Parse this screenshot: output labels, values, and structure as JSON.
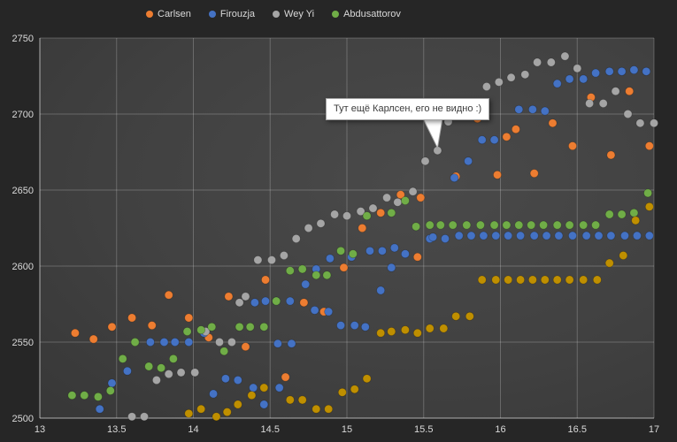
{
  "window": {
    "background": "#262626",
    "plot_gradient_center": "#4a4a4a",
    "plot_gradient_edge": "#2d2d2d"
  },
  "legend": {
    "items": [
      {
        "label": "Carlsen",
        "color": "#ED7D31"
      },
      {
        "label": "Firouzja",
        "color": "#4472C4"
      },
      {
        "label": "Wey Yi",
        "color": "#A5A5A5"
      },
      {
        "label": "Abdusattorov",
        "color": "#70AD47"
      }
    ]
  },
  "tooltip": {
    "text": "Тут ещё Карлсен, его не видно :)"
  },
  "axes": {
    "tick_color": "#d9d9d9",
    "grid_color": "rgba(255,255,255,0.22)",
    "axis_color": "rgba(255,255,255,0.5)"
  },
  "chart_data": {
    "type": "scatter",
    "title": "",
    "xlabel": "",
    "ylabel": "",
    "xlim": [
      13,
      17
    ],
    "ylim": [
      2500,
      2750
    ],
    "x_ticks": [
      13,
      13.5,
      14,
      14.5,
      15,
      15.5,
      16,
      16.5,
      17
    ],
    "y_ticks": [
      2500,
      2550,
      2600,
      2650,
      2700,
      2750
    ],
    "grid": true,
    "legend_position": "top-center",
    "annotation": {
      "text": "Тут ещё Карлсен, его не видно :)",
      "points_to": {
        "x": 15.59,
        "y": 2676
      }
    },
    "series": [
      {
        "name": "Carlsen",
        "color": "#ED7D31",
        "in_legend": true,
        "points": [
          [
            13.23,
            2556
          ],
          [
            13.35,
            2552
          ],
          [
            13.47,
            2560
          ],
          [
            13.6,
            2566
          ],
          [
            13.73,
            2561
          ],
          [
            13.84,
            2581
          ],
          [
            13.97,
            2566
          ],
          [
            14.1,
            2553
          ],
          [
            14.23,
            2580
          ],
          [
            14.34,
            2547
          ],
          [
            14.47,
            2591
          ],
          [
            14.6,
            2527
          ],
          [
            14.72,
            2576
          ],
          [
            14.85,
            2570
          ],
          [
            14.98,
            2599
          ],
          [
            15.1,
            2625
          ],
          [
            15.22,
            2635
          ],
          [
            15.35,
            2647
          ],
          [
            15.46,
            2606
          ],
          [
            15.48,
            2645
          ],
          [
            15.71,
            2659
          ],
          [
            15.85,
            2697
          ],
          [
            15.98,
            2660
          ],
          [
            16.04,
            2685
          ],
          [
            16.1,
            2690
          ],
          [
            16.22,
            2661
          ],
          [
            16.34,
            2694
          ],
          [
            16.47,
            2679
          ],
          [
            16.59,
            2711
          ],
          [
            16.72,
            2673
          ],
          [
            16.84,
            2715
          ],
          [
            16.97,
            2679
          ]
        ]
      },
      {
        "name": "Firouzja",
        "color": "#4472C4",
        "in_legend": true,
        "points": [
          [
            13.39,
            2506
          ],
          [
            13.47,
            2523
          ],
          [
            13.57,
            2531
          ],
          [
            13.72,
            2550
          ],
          [
            13.81,
            2550
          ],
          [
            13.88,
            2550
          ],
          [
            13.97,
            2550
          ],
          [
            14.07,
            2556
          ],
          [
            14.13,
            2516
          ],
          [
            14.21,
            2526
          ],
          [
            14.29,
            2525
          ],
          [
            14.39,
            2520
          ],
          [
            14.4,
            2576
          ],
          [
            14.46,
            2509
          ],
          [
            14.47,
            2577
          ],
          [
            14.54,
            2577
          ],
          [
            14.55,
            2549
          ],
          [
            14.56,
            2520
          ],
          [
            14.63,
            2577
          ],
          [
            14.64,
            2549
          ],
          [
            14.73,
            2588
          ],
          [
            14.79,
            2571
          ],
          [
            14.8,
            2598
          ],
          [
            14.88,
            2570
          ],
          [
            14.89,
            2605
          ],
          [
            14.96,
            2561
          ],
          [
            15.03,
            2606
          ],
          [
            15.05,
            2561
          ],
          [
            15.12,
            2560
          ],
          [
            15.15,
            2610
          ],
          [
            15.22,
            2584
          ],
          [
            15.23,
            2610
          ],
          [
            15.29,
            2599
          ],
          [
            15.31,
            2612
          ],
          [
            15.38,
            2608
          ],
          [
            15.54,
            2618
          ],
          [
            15.56,
            2619
          ],
          [
            15.64,
            2618
          ],
          [
            15.7,
            2658
          ],
          [
            15.73,
            2620
          ],
          [
            15.79,
            2669
          ],
          [
            15.81,
            2620
          ],
          [
            15.88,
            2683
          ],
          [
            15.89,
            2620
          ],
          [
            15.96,
            2683
          ],
          [
            15.97,
            2620
          ],
          [
            16.05,
            2620
          ],
          [
            16.12,
            2703
          ],
          [
            16.13,
            2620
          ],
          [
            16.21,
            2703
          ],
          [
            16.22,
            2620
          ],
          [
            16.29,
            2702
          ],
          [
            16.3,
            2620
          ],
          [
            16.37,
            2720
          ],
          [
            16.38,
            2620
          ],
          [
            16.45,
            2723
          ],
          [
            16.47,
            2620
          ],
          [
            16.54,
            2723
          ],
          [
            16.56,
            2620
          ],
          [
            16.62,
            2727
          ],
          [
            16.64,
            2620
          ],
          [
            16.71,
            2728
          ],
          [
            16.72,
            2620
          ],
          [
            16.79,
            2728
          ],
          [
            16.81,
            2620
          ],
          [
            16.87,
            2729
          ],
          [
            16.89,
            2620
          ],
          [
            16.95,
            2728
          ],
          [
            16.97,
            2620
          ]
        ]
      },
      {
        "name": "Wey Yi",
        "color": "#A5A5A5",
        "in_legend": true,
        "points": [
          [
            13.6,
            2501
          ],
          [
            13.68,
            2501
          ],
          [
            13.76,
            2525
          ],
          [
            13.84,
            2529
          ],
          [
            13.92,
            2530
          ],
          [
            14.01,
            2530
          ],
          [
            14.08,
            2557
          ],
          [
            14.17,
            2550
          ],
          [
            14.25,
            2550
          ],
          [
            14.3,
            2576
          ],
          [
            14.34,
            2580
          ],
          [
            14.42,
            2604
          ],
          [
            14.51,
            2604
          ],
          [
            14.59,
            2607
          ],
          [
            14.67,
            2618
          ],
          [
            14.75,
            2625
          ],
          [
            14.83,
            2628
          ],
          [
            14.92,
            2634
          ],
          [
            15.0,
            2633
          ],
          [
            15.09,
            2636
          ],
          [
            15.17,
            2638
          ],
          [
            15.26,
            2645
          ],
          [
            15.33,
            2642
          ],
          [
            15.43,
            2649
          ],
          [
            15.51,
            2669
          ],
          [
            15.59,
            2676
          ],
          [
            15.66,
            2695
          ],
          [
            15.75,
            2707
          ],
          [
            15.83,
            2704
          ],
          [
            15.91,
            2718
          ],
          [
            15.99,
            2721
          ],
          [
            16.07,
            2724
          ],
          [
            16.16,
            2726
          ],
          [
            16.24,
            2734
          ],
          [
            16.33,
            2734
          ],
          [
            16.42,
            2738
          ],
          [
            16.5,
            2730
          ],
          [
            16.58,
            2707
          ],
          [
            16.67,
            2707
          ],
          [
            16.75,
            2715
          ],
          [
            16.83,
            2700
          ],
          [
            16.91,
            2694
          ],
          [
            17.0,
            2694
          ]
        ]
      },
      {
        "name": "Abdusattorov",
        "color": "#70AD47",
        "in_legend": true,
        "points": [
          [
            13.21,
            2515
          ],
          [
            13.29,
            2515
          ],
          [
            13.38,
            2514
          ],
          [
            13.46,
            2518
          ],
          [
            13.54,
            2539
          ],
          [
            13.62,
            2550
          ],
          [
            13.71,
            2534
          ],
          [
            13.79,
            2533
          ],
          [
            13.87,
            2539
          ],
          [
            13.96,
            2557
          ],
          [
            14.05,
            2558
          ],
          [
            14.12,
            2560
          ],
          [
            14.2,
            2544
          ],
          [
            14.3,
            2560
          ],
          [
            14.37,
            2560
          ],
          [
            14.46,
            2560
          ],
          [
            14.54,
            2577
          ],
          [
            14.63,
            2597
          ],
          [
            14.71,
            2598
          ],
          [
            14.8,
            2594
          ],
          [
            14.87,
            2594
          ],
          [
            14.96,
            2610
          ],
          [
            15.04,
            2608
          ],
          [
            15.13,
            2633
          ],
          [
            15.29,
            2635
          ],
          [
            15.38,
            2643
          ],
          [
            15.45,
            2626
          ],
          [
            15.54,
            2627
          ],
          [
            15.61,
            2627
          ],
          [
            15.69,
            2627
          ],
          [
            15.78,
            2627
          ],
          [
            15.87,
            2627
          ],
          [
            15.96,
            2627
          ],
          [
            16.04,
            2627
          ],
          [
            16.12,
            2627
          ],
          [
            16.2,
            2627
          ],
          [
            16.28,
            2627
          ],
          [
            16.37,
            2627
          ],
          [
            16.45,
            2627
          ],
          [
            16.54,
            2627
          ],
          [
            16.62,
            2627
          ],
          [
            16.71,
            2634
          ],
          [
            16.79,
            2634
          ],
          [
            16.87,
            2635
          ],
          [
            16.96,
            2648
          ]
        ]
      },
      {
        "name": "unlabeled-gold",
        "color": "#BF8F00",
        "in_legend": false,
        "points": [
          [
            13.97,
            2503
          ],
          [
            14.05,
            2506
          ],
          [
            14.15,
            2501
          ],
          [
            14.22,
            2504
          ],
          [
            14.29,
            2509
          ],
          [
            14.38,
            2515
          ],
          [
            14.46,
            2520
          ],
          [
            14.63,
            2512
          ],
          [
            14.71,
            2512
          ],
          [
            14.8,
            2506
          ],
          [
            14.88,
            2506
          ],
          [
            14.97,
            2517
          ],
          [
            15.05,
            2519
          ],
          [
            15.13,
            2526
          ],
          [
            15.22,
            2556
          ],
          [
            15.29,
            2557
          ],
          [
            15.38,
            2558
          ],
          [
            15.46,
            2556
          ],
          [
            15.54,
            2559
          ],
          [
            15.63,
            2559
          ],
          [
            15.71,
            2567
          ],
          [
            15.8,
            2567
          ],
          [
            15.88,
            2591
          ],
          [
            15.97,
            2591
          ],
          [
            16.05,
            2591
          ],
          [
            16.13,
            2591
          ],
          [
            16.21,
            2591
          ],
          [
            16.29,
            2591
          ],
          [
            16.37,
            2591
          ],
          [
            16.45,
            2591
          ],
          [
            16.54,
            2591
          ],
          [
            16.63,
            2591
          ],
          [
            16.71,
            2602
          ],
          [
            16.8,
            2607
          ],
          [
            16.88,
            2630
          ],
          [
            16.97,
            2639
          ]
        ]
      }
    ]
  }
}
